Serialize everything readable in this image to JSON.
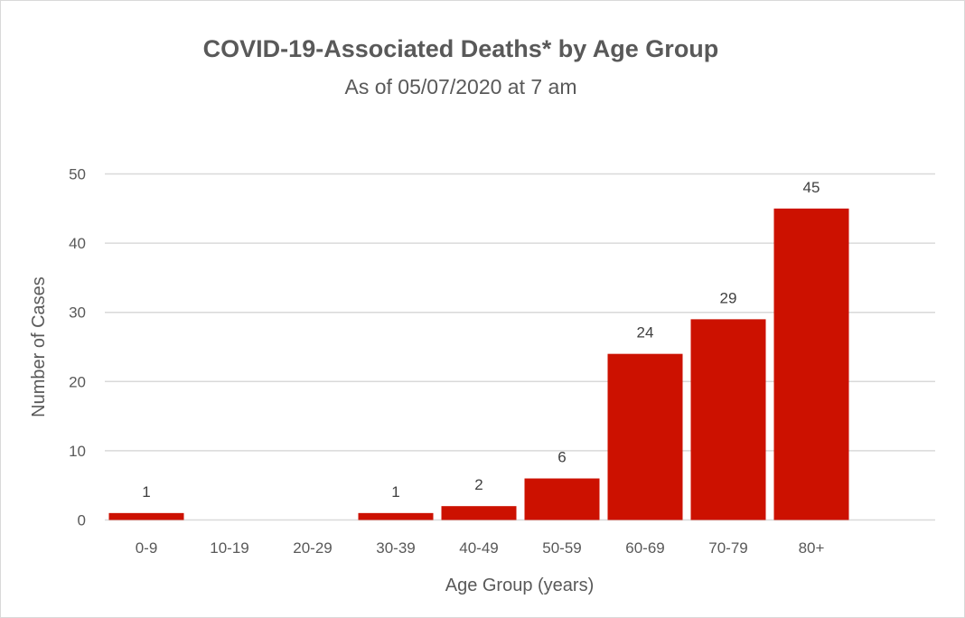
{
  "chart_data": {
    "type": "bar",
    "title": "COVID-19-Associated Deaths* by Age Group",
    "subtitle": "As of 05/07/2020 at 7 am",
    "xlabel": "Age Group (years)",
    "ylabel": "Number of Cases",
    "categories": [
      "0-9",
      "10-19",
      "20-29",
      "30-39",
      "40-49",
      "50-59",
      "60-69",
      "70-79",
      "80+"
    ],
    "values": [
      1,
      0,
      0,
      1,
      2,
      6,
      24,
      29,
      45
    ],
    "data_labels": [
      "1",
      "",
      "",
      "1",
      "2",
      "6",
      "24",
      "29",
      "45"
    ],
    "ylim": [
      0,
      50
    ],
    "yticks": [
      "0",
      "10",
      "20",
      "30",
      "40",
      "50"
    ],
    "grid": true,
    "legend": "none",
    "bar_color": "#cc1100"
  }
}
